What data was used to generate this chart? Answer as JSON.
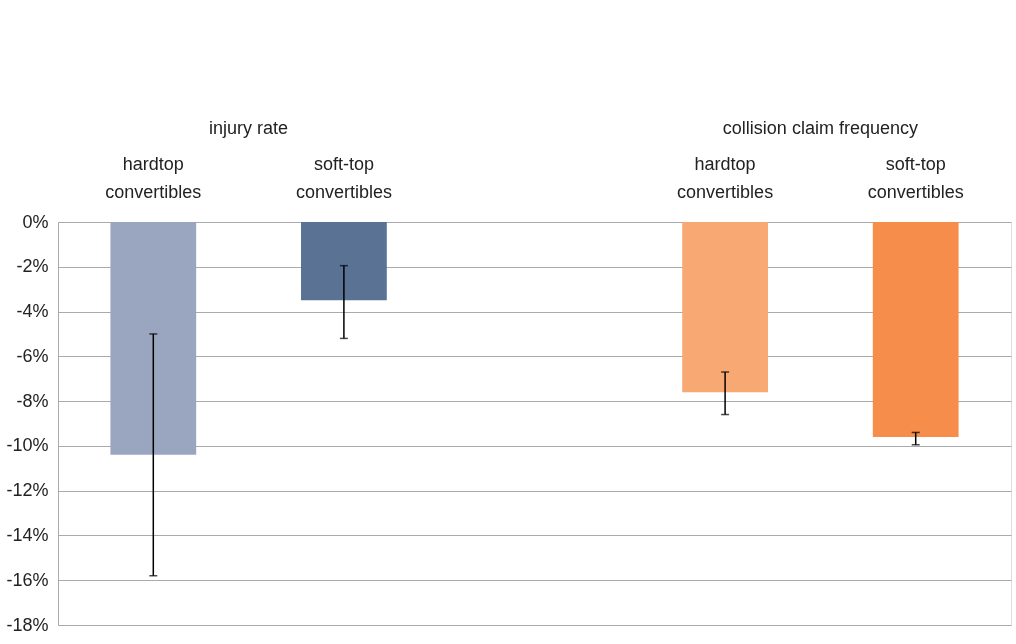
{
  "chart_data": {
    "type": "bar",
    "categories": [
      "hardtop convertibles",
      "soft-top convertibles",
      null,
      "hardtop convertibles",
      "soft-top convertibles"
    ],
    "values": [
      -10.4,
      -3.5,
      null,
      -7.6,
      -9.6
    ],
    "colors": [
      "#9aa6bf",
      "#5a7395",
      null,
      "#f8a872",
      "#f68d4a"
    ],
    "errors": [
      [
        -15.8,
        -5.0
      ],
      [
        -5.2,
        -1.95
      ],
      null,
      [
        -8.6,
        -6.7
      ],
      [
        -9.95,
        -9.4
      ]
    ],
    "annotations": [
      "injury rate",
      "collision claim frequency"
    ],
    "ylim": [
      -18,
      0
    ],
    "yticks": [
      {
        "value": 0,
        "label": "0%"
      },
      {
        "value": -2,
        "label": "-2%"
      },
      {
        "value": -4,
        "label": "-4%"
      },
      {
        "value": -6,
        "label": "-6%"
      },
      {
        "value": -8,
        "label": "-8%"
      },
      {
        "value": -10,
        "label": "-10%"
      },
      {
        "value": -12,
        "label": "-12%"
      },
      {
        "value": -14,
        "label": "-14%"
      },
      {
        "value": -16,
        "label": "-16%"
      },
      {
        "value": -18,
        "label": "-18%"
      }
    ],
    "grid": "y"
  }
}
